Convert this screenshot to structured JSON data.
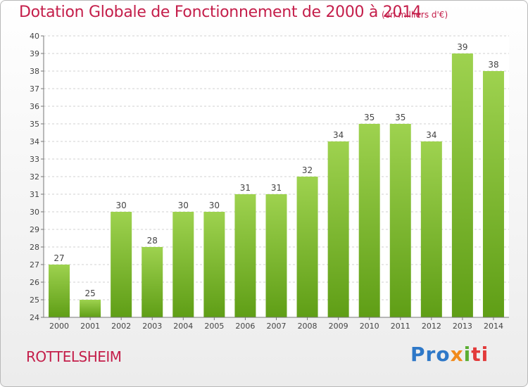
{
  "header": {
    "title": "Dotation Globale de Fonctionnement de 2000 à 2014",
    "subtitle": "(en milliers d'€)"
  },
  "footer": {
    "place": "ROTTELSHEIM",
    "logo": {
      "p1": "Pro",
      "p2": "x",
      "p3": "i",
      "p4": "ti"
    }
  },
  "colors": {
    "bar_top": "#9ed24f",
    "bar_bottom": "#5f9e16",
    "title": "#c41e4a"
  },
  "chart_data": {
    "type": "bar",
    "title": "Dotation Globale de Fonctionnement de 2000 à 2014",
    "subtitle": "(en milliers d'€)",
    "categories": [
      "2000",
      "2001",
      "2002",
      "2003",
      "2004",
      "2005",
      "2006",
      "2007",
      "2008",
      "2009",
      "2010",
      "2011",
      "2012",
      "2013",
      "2014"
    ],
    "values": [
      27,
      25,
      30,
      28,
      30,
      30,
      31,
      31,
      32,
      34,
      35,
      35,
      34,
      39,
      38
    ],
    "ylim": [
      24,
      40
    ],
    "yticks": [
      24,
      25,
      26,
      27,
      28,
      29,
      30,
      31,
      32,
      33,
      34,
      35,
      36,
      37,
      38,
      39,
      40
    ],
    "grid": true
  }
}
